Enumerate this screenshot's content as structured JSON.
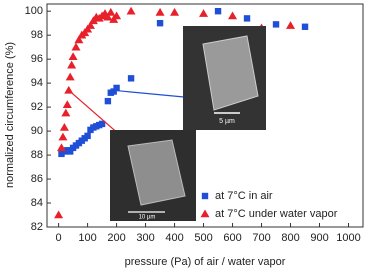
{
  "chart_data": {
    "type": "scatter",
    "x_label": "pressure (Pa) of air / water vapor",
    "y_label": "normalized circumference (%)",
    "xlim": [
      -40,
      1050
    ],
    "xticks": [
      0,
      100,
      200,
      300,
      400,
      500,
      600,
      700,
      800,
      900,
      1000
    ],
    "ylim": [
      82,
      100.6
    ],
    "yticks": [
      82,
      84,
      86,
      88,
      90,
      92,
      94,
      96,
      98,
      100
    ],
    "legend": "lower right",
    "annotations": [
      "5 µm",
      "10 µm"
    ],
    "series": [
      {
        "name": "at 7°C in air",
        "color": "#1f4fd6",
        "marker": "square",
        "x": [
          10,
          20,
          30,
          40,
          50,
          60,
          70,
          80,
          90,
          100,
          110,
          120,
          130,
          140,
          150,
          170,
          180,
          190,
          200,
          250,
          350,
          550,
          650,
          750,
          850
        ],
        "values": [
          88.1,
          88.3,
          88.4,
          88.3,
          88.6,
          88.8,
          89.0,
          89.2,
          89.4,
          89.6,
          90.1,
          90.3,
          90.4,
          90.5,
          90.6,
          92.5,
          93.2,
          93.3,
          93.6,
          94.4,
          99.0,
          100.0,
          99.4,
          98.9,
          98.7
        ]
      },
      {
        "name": "at 7°C under water vapor",
        "color": "#e8202a",
        "marker": "triangle",
        "x": [
          0,
          10,
          15,
          20,
          25,
          30,
          35,
          40,
          45,
          50,
          60,
          70,
          80,
          90,
          100,
          110,
          120,
          130,
          140,
          150,
          160,
          170,
          180,
          190,
          200,
          250,
          350,
          400,
          500,
          600,
          700,
          800
        ],
        "values": [
          83.0,
          88.6,
          89.5,
          90.3,
          91.5,
          92.2,
          93.4,
          94.5,
          95.5,
          96.2,
          97.0,
          97.6,
          98.0,
          98.2,
          98.5,
          98.8,
          99.2,
          99.5,
          99.4,
          99.6,
          99.8,
          99.5,
          99.9,
          99.3,
          99.6,
          100.0,
          99.9,
          99.9,
          99.8,
          99.6,
          98.6,
          98.8
        ]
      }
    ]
  }
}
